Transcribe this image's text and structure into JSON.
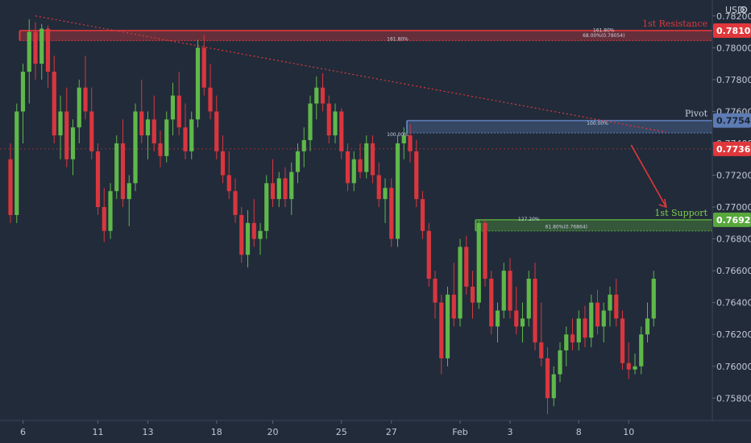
{
  "chart_data": {
    "type": "candlestick",
    "currency_label": "USD",
    "y_axis": {
      "min": 0.7566,
      "max": 0.783,
      "ticks": [
        "0.78200",
        "0.78000",
        "0.77800",
        "0.77600",
        "0.77400",
        "0.77200",
        "0.77000",
        "0.76800",
        "0.76600",
        "0.76400",
        "0.76200",
        "0.76000",
        "0.75800"
      ],
      "tick_values": [
        0.782,
        0.78,
        0.778,
        0.776,
        0.774,
        0.772,
        0.77,
        0.768,
        0.766,
        0.764,
        0.762,
        0.76,
        0.758
      ]
    },
    "x_axis": {
      "labels": [
        "6",
        "11",
        "13",
        "18",
        "20",
        "25",
        "27",
        "Feb",
        "3",
        "8",
        "10"
      ],
      "label_bars": [
        2,
        14,
        22,
        33,
        42,
        53,
        61,
        72,
        80,
        91,
        99
      ]
    },
    "bar_count": 104,
    "candles": [
      [
        0.773,
        0.774,
        0.769,
        0.7695
      ],
      [
        0.7695,
        0.7765,
        0.769,
        0.776
      ],
      [
        0.776,
        0.779,
        0.774,
        0.7785
      ],
      [
        0.7785,
        0.7818,
        0.7765,
        0.781
      ],
      [
        0.781,
        0.7816,
        0.778,
        0.779
      ],
      [
        0.779,
        0.7815,
        0.778,
        0.7812
      ],
      [
        0.7812,
        0.7814,
        0.7775,
        0.7785
      ],
      [
        0.7785,
        0.7795,
        0.774,
        0.7745
      ],
      [
        0.7745,
        0.777,
        0.773,
        0.776
      ],
      [
        0.776,
        0.7775,
        0.7725,
        0.773
      ],
      [
        0.773,
        0.7755,
        0.772,
        0.775
      ],
      [
        0.775,
        0.778,
        0.774,
        0.7775
      ],
      [
        0.7775,
        0.7795,
        0.7755,
        0.776
      ],
      [
        0.776,
        0.7775,
        0.773,
        0.7735
      ],
      [
        0.7735,
        0.774,
        0.7695,
        0.77
      ],
      [
        0.77,
        0.7712,
        0.7678,
        0.7685
      ],
      [
        0.7685,
        0.7715,
        0.768,
        0.771
      ],
      [
        0.771,
        0.7745,
        0.7705,
        0.774
      ],
      [
        0.774,
        0.7755,
        0.77,
        0.7705
      ],
      [
        0.7705,
        0.772,
        0.7688,
        0.7715
      ],
      [
        0.7715,
        0.7765,
        0.771,
        0.776
      ],
      [
        0.776,
        0.778,
        0.774,
        0.7745
      ],
      [
        0.7745,
        0.776,
        0.773,
        0.7755
      ],
      [
        0.7755,
        0.777,
        0.7735,
        0.774
      ],
      [
        0.774,
        0.7748,
        0.7725,
        0.7732
      ],
      [
        0.7732,
        0.776,
        0.7728,
        0.7755
      ],
      [
        0.7755,
        0.7778,
        0.7745,
        0.777
      ],
      [
        0.777,
        0.7785,
        0.7745,
        0.775
      ],
      [
        0.775,
        0.7765,
        0.773,
        0.7735
      ],
      [
        0.7735,
        0.776,
        0.773,
        0.7755
      ],
      [
        0.7755,
        0.7805,
        0.775,
        0.78
      ],
      [
        0.78,
        0.7808,
        0.777,
        0.7775
      ],
      [
        0.7775,
        0.779,
        0.7755,
        0.776
      ],
      [
        0.776,
        0.777,
        0.773,
        0.7735
      ],
      [
        0.7735,
        0.7745,
        0.7715,
        0.772
      ],
      [
        0.772,
        0.7735,
        0.7705,
        0.771
      ],
      [
        0.771,
        0.7718,
        0.769,
        0.7695
      ],
      [
        0.7695,
        0.77,
        0.7665,
        0.767
      ],
      [
        0.767,
        0.7698,
        0.7662,
        0.769
      ],
      [
        0.769,
        0.7705,
        0.7675,
        0.768
      ],
      [
        0.768,
        0.769,
        0.767,
        0.7685
      ],
      [
        0.7685,
        0.772,
        0.768,
        0.7715
      ],
      [
        0.7715,
        0.773,
        0.77,
        0.7705
      ],
      [
        0.7705,
        0.7722,
        0.77,
        0.7718
      ],
      [
        0.7718,
        0.7725,
        0.77,
        0.7705
      ],
      [
        0.7705,
        0.7728,
        0.7695,
        0.7722
      ],
      [
        0.7722,
        0.774,
        0.7715,
        0.7735
      ],
      [
        0.7735,
        0.775,
        0.7725,
        0.7742
      ],
      [
        0.7742,
        0.777,
        0.7735,
        0.7765
      ],
      [
        0.7765,
        0.7782,
        0.7755,
        0.7775
      ],
      [
        0.7775,
        0.7784,
        0.776,
        0.7765
      ],
      [
        0.7765,
        0.777,
        0.774,
        0.7745
      ],
      [
        0.7745,
        0.7765,
        0.774,
        0.776
      ],
      [
        0.776,
        0.7762,
        0.773,
        0.7735
      ],
      [
        0.7735,
        0.774,
        0.771,
        0.7715
      ],
      [
        0.7715,
        0.7735,
        0.771,
        0.773
      ],
      [
        0.773,
        0.774,
        0.7718,
        0.7722
      ],
      [
        0.7722,
        0.7745,
        0.7718,
        0.774
      ],
      [
        0.774,
        0.7745,
        0.7715,
        0.772
      ],
      [
        0.772,
        0.7728,
        0.77,
        0.7705
      ],
      [
        0.7705,
        0.7718,
        0.769,
        0.7712
      ],
      [
        0.7712,
        0.7718,
        0.7675,
        0.768
      ],
      [
        0.768,
        0.7745,
        0.7675,
        0.774
      ],
      [
        0.774,
        0.775,
        0.773,
        0.7745
      ],
      [
        0.7745,
        0.7752,
        0.7728,
        0.7735
      ],
      [
        0.7735,
        0.7742,
        0.77,
        0.7705
      ],
      [
        0.7705,
        0.771,
        0.768,
        0.7685
      ],
      [
        0.7685,
        0.769,
        0.765,
        0.7655
      ],
      [
        0.7655,
        0.766,
        0.763,
        0.764
      ],
      [
        0.764,
        0.7645,
        0.7595,
        0.7605
      ],
      [
        0.7605,
        0.765,
        0.76,
        0.7645
      ],
      [
        0.7645,
        0.7665,
        0.7625,
        0.763
      ],
      [
        0.763,
        0.768,
        0.7625,
        0.7675
      ],
      [
        0.7675,
        0.7682,
        0.7645,
        0.765
      ],
      [
        0.765,
        0.766,
        0.763,
        0.764
      ],
      [
        0.764,
        0.7692,
        0.7636,
        0.769
      ],
      [
        0.769,
        0.7692,
        0.765,
        0.7655
      ],
      [
        0.7655,
        0.766,
        0.762,
        0.7625
      ],
      [
        0.7625,
        0.764,
        0.7615,
        0.7635
      ],
      [
        0.7635,
        0.7665,
        0.763,
        0.766
      ],
      [
        0.766,
        0.7668,
        0.763,
        0.7635
      ],
      [
        0.7635,
        0.765,
        0.762,
        0.7625
      ],
      [
        0.7625,
        0.764,
        0.7615,
        0.763
      ],
      [
        0.763,
        0.766,
        0.7625,
        0.7655
      ],
      [
        0.7655,
        0.7665,
        0.761,
        0.7615
      ],
      [
        0.7615,
        0.764,
        0.76,
        0.7605
      ],
      [
        0.7605,
        0.7612,
        0.757,
        0.758
      ],
      [
        0.758,
        0.76,
        0.7575,
        0.7595
      ],
      [
        0.7595,
        0.7615,
        0.759,
        0.761
      ],
      [
        0.761,
        0.7625,
        0.76,
        0.762
      ],
      [
        0.762,
        0.763,
        0.761,
        0.7615
      ],
      [
        0.7615,
        0.7635,
        0.761,
        0.763
      ],
      [
        0.763,
        0.7638,
        0.7612,
        0.7618
      ],
      [
        0.7618,
        0.7645,
        0.7612,
        0.764
      ],
      [
        0.764,
        0.7648,
        0.762,
        0.7625
      ],
      [
        0.7625,
        0.764,
        0.7615,
        0.7635
      ],
      [
        0.7635,
        0.765,
        0.7625,
        0.7645
      ],
      [
        0.7645,
        0.7655,
        0.7625,
        0.763
      ],
      [
        0.763,
        0.7635,
        0.7598,
        0.7602
      ],
      [
        0.7602,
        0.7615,
        0.7592,
        0.7598
      ],
      [
        0.7598,
        0.7608,
        0.7595,
        0.76
      ],
      [
        0.76,
        0.7625,
        0.7595,
        0.762
      ],
      [
        0.762,
        0.764,
        0.7615,
        0.763
      ],
      [
        0.763,
        0.766,
        0.7625,
        0.7655
      ]
    ],
    "zones": [
      {
        "name": "1st Resistance",
        "value": 0.78108,
        "value_label": "0.78108",
        "low": 0.78045,
        "high": 0.78108,
        "start_bar": 2,
        "color": "#e0373b"
      },
      {
        "name": "Pivot",
        "value": 0.77543,
        "value_label": "0.77543",
        "low": 0.77465,
        "high": 0.77543,
        "start_bar": 64,
        "color": "#5d7bb4"
      },
      {
        "name": "1st Support",
        "value": 0.7692,
        "value_label": "0.76920",
        "low": 0.7685,
        "high": 0.7692,
        "start_bar": 75,
        "color": "#58a83c"
      }
    ],
    "current_price": {
      "value": 0.77365,
      "label": "0.77365",
      "color": "#e0373b"
    },
    "fib_notes": [
      {
        "text": "161.80%",
        "price": 0.78095,
        "bar": 95
      },
      {
        "text": "68.00%(0.78054)",
        "price": 0.78062,
        "bar": 95
      },
      {
        "text": "161.80%",
        "price": 0.7804,
        "bar": 62
      },
      {
        "text": "100.00%",
        "price": 0.7751,
        "bar": 94
      },
      {
        "text": "100.00%",
        "price": 0.7744,
        "bar": 62
      },
      {
        "text": "127.20%",
        "price": 0.7691,
        "bar": 83
      },
      {
        "text": "61.80%(0.76864)",
        "price": 0.76862,
        "bar": 89
      }
    ],
    "trendline": {
      "from": {
        "bar": 4,
        "price": 0.782
      },
      "to": {
        "bar": 105,
        "price": 0.7747
      }
    },
    "grid": false,
    "legend": "none"
  }
}
